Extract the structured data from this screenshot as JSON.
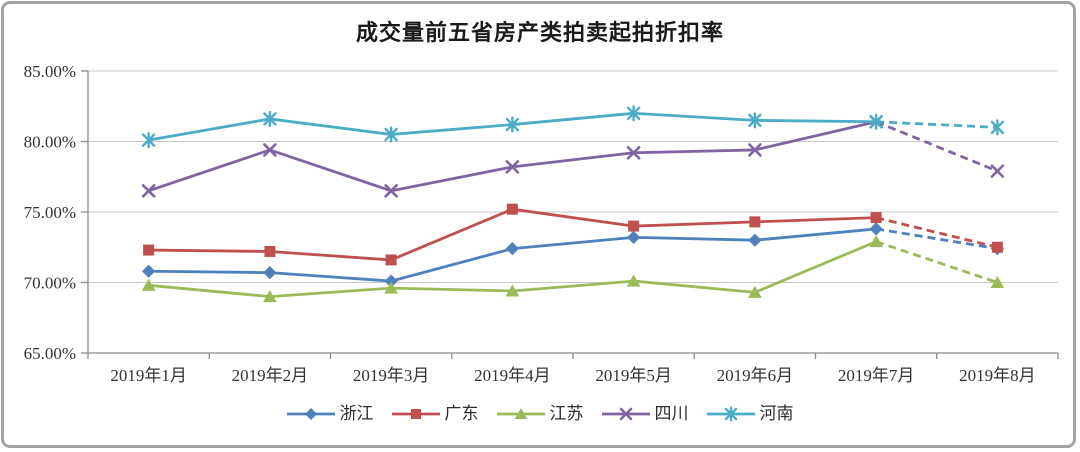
{
  "frame": {
    "border_color": "#a3a3a3",
    "background_color": "#ffffff"
  },
  "chart_data": {
    "type": "line",
    "title": "成交量前五省房产类拍卖起拍折扣率",
    "x_categories": [
      "2019年1月",
      "2019年2月",
      "2019年3月",
      "2019年4月",
      "2019年5月",
      "2019年6月",
      "2019年7月",
      "2019年8月"
    ],
    "y_axis": {
      "min": 65,
      "max": 85,
      "unit": "%",
      "ticks": [
        {
          "label": "85.00%",
          "value": 85
        },
        {
          "label": "80.00%",
          "value": 80
        },
        {
          "label": "75.00%",
          "value": 75
        },
        {
          "label": "70.00%",
          "value": 70
        },
        {
          "label": "65.00%",
          "value": 65
        }
      ]
    },
    "grid": true,
    "grid_color": "#c9c9c9",
    "axis_color": "#8a8a8a",
    "label_color": "#333333",
    "legend_position": "bottom",
    "series": [
      {
        "name": "浙江",
        "key": "zhejiang",
        "color": "#4F81BD",
        "marker": "diamond",
        "values": [
          70.8,
          70.7,
          70.1,
          72.4,
          73.2,
          73.0,
          73.8,
          72.4
        ],
        "dashed_from_index": 6
      },
      {
        "name": "广东",
        "key": "guangdong",
        "color": "#C0504D",
        "marker": "square",
        "values": [
          72.3,
          72.2,
          71.6,
          75.2,
          74.0,
          74.3,
          74.6,
          72.5
        ],
        "dashed_from_index": 6
      },
      {
        "name": "江苏",
        "key": "jiangsu",
        "color": "#9BBB59",
        "marker": "triangle",
        "values": [
          69.8,
          69.0,
          69.6,
          69.4,
          70.1,
          69.3,
          72.9,
          70.0
        ],
        "dashed_from_index": 6
      },
      {
        "name": "四川",
        "key": "sichuan",
        "color": "#8064A2",
        "marker": "x",
        "values": [
          76.5,
          79.4,
          76.5,
          78.2,
          79.2,
          79.4,
          81.4,
          77.9
        ],
        "dashed_from_index": 6
      },
      {
        "name": "河南",
        "key": "henan",
        "color": "#4BACC6",
        "marker": "star",
        "values": [
          80.1,
          81.6,
          80.5,
          81.2,
          82.0,
          81.5,
          81.4,
          81.0
        ],
        "dashed_from_index": 6
      }
    ]
  }
}
